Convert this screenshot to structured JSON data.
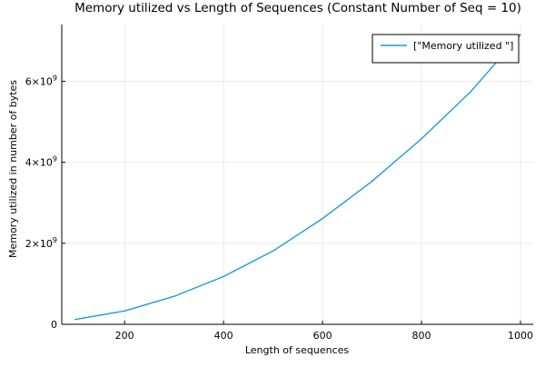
{
  "chart_data": {
    "type": "line",
    "title": "Memory utilized vs Length of Sequences (Constant Number of Seq = 10)",
    "xlabel": "Length of sequences",
    "ylabel": "Memory utilized in number of bytes",
    "xlim": [
      73,
      1000
    ],
    "ylim": [
      0,
      7400000000.0
    ],
    "x_ticks": [
      {
        "value": 200,
        "label": "200"
      },
      {
        "value": 400,
        "label": "400"
      },
      {
        "value": 600,
        "label": "600"
      },
      {
        "value": 800,
        "label": "800"
      },
      {
        "value": 1000,
        "label": "1000"
      }
    ],
    "y_ticks": [
      {
        "value": 0,
        "mantissa": "0",
        "exponent": ""
      },
      {
        "value": 2000000000,
        "mantissa": "2×10",
        "exponent": "9"
      },
      {
        "value": 4000000000,
        "mantissa": "4×10",
        "exponent": "9"
      },
      {
        "value": 6000000000,
        "mantissa": "6×10",
        "exponent": "9"
      }
    ],
    "grid": true,
    "legend_position": "top-right",
    "series": [
      {
        "name": "[\"Memory utilized \"]",
        "color": "#1f9bdc",
        "x": [
          100,
          200,
          300,
          400,
          500,
          600,
          700,
          800,
          900,
          1000
        ],
        "y": [
          120000000,
          330000000,
          690000000,
          1180000000,
          1810000000,
          2610000000,
          3530000000,
          4580000000,
          5750000000,
          7150000000
        ]
      }
    ]
  }
}
